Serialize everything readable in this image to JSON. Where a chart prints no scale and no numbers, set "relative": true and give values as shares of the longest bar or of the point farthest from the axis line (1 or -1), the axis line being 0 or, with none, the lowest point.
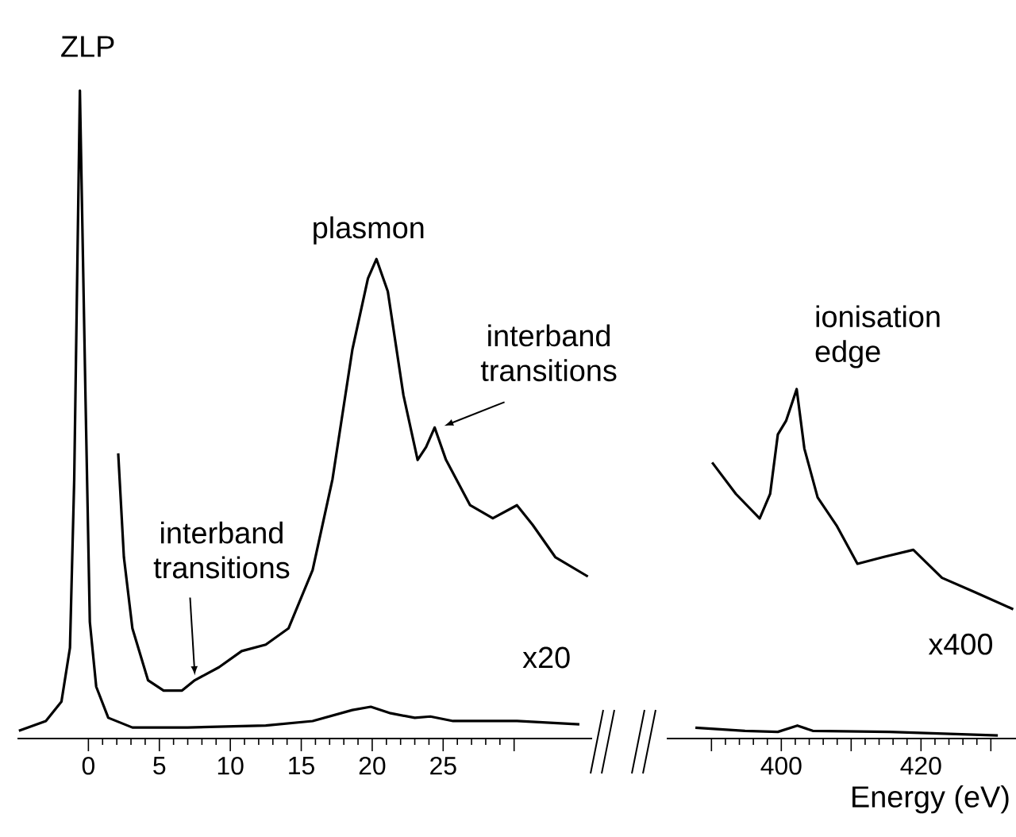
{
  "chart_data": [
    {
      "type": "line",
      "relative": true,
      "xlim": [
        -5,
        35.5
      ],
      "xticks": [
        0,
        5,
        10,
        15,
        20,
        25,
        {
          "value": 30,
          "label": null
        }
      ],
      "series": [
        {
          "color": "#000000",
          "x": [
            -4.9,
            -3.0,
            -1.9,
            -1.3,
            -1.0,
            -0.6,
            -0.2,
            0.1,
            0.55,
            1.4,
            3.1,
            7,
            12.5,
            15.8,
            18.6,
            19.9,
            21.3,
            23,
            24.1,
            25.7,
            30.2,
            34.6
          ],
          "values": [
            0.012,
            0.027,
            0.057,
            0.14,
            0.4,
            1,
            0.52,
            0.18,
            0.08,
            0.032,
            0.017,
            0.017,
            0.02,
            0.027,
            0.044,
            0.049,
            0.039,
            0.032,
            0.034,
            0.027,
            0.027,
            0.022
          ]
        },
        {
          "name": "x20",
          "color": "#000000",
          "x": [
            2.1,
            2.5,
            3.1,
            4.2,
            5.3,
            6.6,
            7.5,
            9.2,
            10.8,
            12.5,
            14.1,
            15.8,
            17.2,
            18.6,
            19.7,
            20.3,
            21.1,
            22.2,
            23.2,
            23.8,
            24.4,
            25.2,
            26.9,
            28.5,
            30.2,
            31.3,
            32.9,
            35.2
          ],
          "values": [
            0.44,
            0.28,
            0.17,
            0.09,
            0.074,
            0.074,
            0.09,
            0.11,
            0.135,
            0.145,
            0.17,
            0.26,
            0.4,
            0.6,
            0.71,
            0.74,
            0.69,
            0.53,
            0.43,
            0.45,
            0.48,
            0.43,
            0.36,
            0.34,
            0.36,
            0.33,
            0.28,
            0.25
          ]
        }
      ],
      "annotations": [
        {
          "text": "ZLP",
          "x": -0.6,
          "y": 1
        },
        {
          "text": "plasmon",
          "x": 20.3,
          "y": 0.74
        },
        {
          "text": "interband transitions",
          "x": 7.5,
          "y": 0.09
        },
        {
          "text": "interband transitions",
          "x": 24.4,
          "y": 0.48
        }
      ]
    },
    {
      "type": "line",
      "relative": true,
      "xlim": [
        383.6,
        433.6
      ],
      "xticks": [
        {
          "value": 390,
          "label": null
        },
        400,
        {
          "value": 410,
          "label": null
        },
        420,
        {
          "value": 430,
          "label": null
        }
      ],
      "xlabel": "Energy (eV)",
      "series": [
        {
          "color": "#000000",
          "x": [
            387.7,
            394.8,
            399.5,
            402.3,
            404.5,
            415.5,
            431
          ],
          "values": [
            0.031,
            0.022,
            0.019,
            0.037,
            0.022,
            0.019,
            0.009
          ]
        },
        {
          "name": "x400",
          "color": "#000000",
          "x": [
            390.1,
            393.5,
            396.9,
            398.4,
            399.5,
            400.7,
            402.2,
            403.3,
            405.2,
            407.9,
            410.9,
            414.7,
            418.9,
            423.0,
            427.6,
            433.2
          ],
          "values": [
            0.79,
            0.7,
            0.63,
            0.7,
            0.87,
            0.91,
            1,
            0.83,
            0.69,
            0.61,
            0.5,
            0.52,
            0.54,
            0.46,
            0.42,
            0.37
          ]
        }
      ],
      "annotations": [
        {
          "text": "ionisation edge",
          "x": 402.2,
          "y": 1
        }
      ]
    }
  ]
}
